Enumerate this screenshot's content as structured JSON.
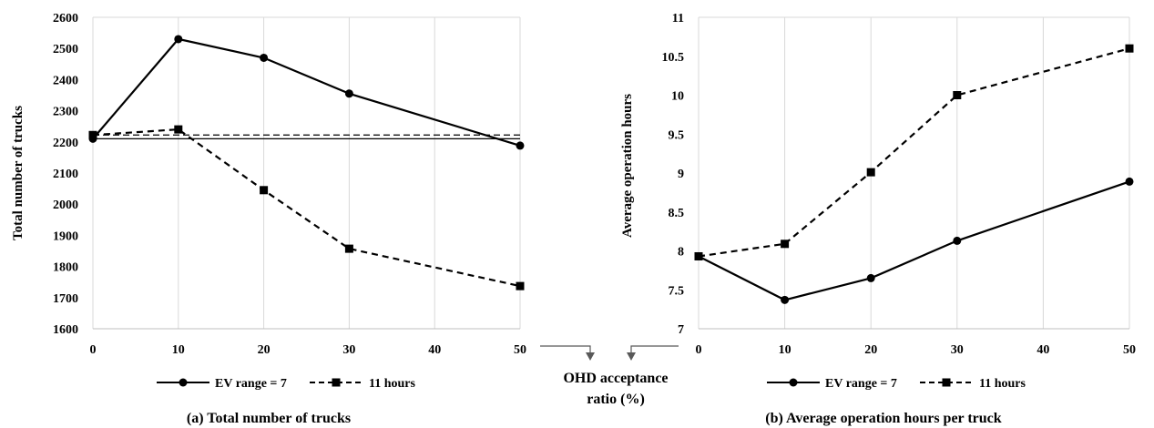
{
  "chart_data": [
    {
      "type": "line",
      "caption": "(a) Total number of trucks",
      "xlabel": "",
      "ylabel": "Total number of trucks",
      "x": [
        0,
        10,
        20,
        30,
        50
      ],
      "x_ticks": [
        0,
        10,
        20,
        30,
        40,
        50
      ],
      "xlim": [
        0,
        50
      ],
      "ylim": [
        1600,
        2600
      ],
      "y_ticks": [
        1600,
        1700,
        1800,
        1900,
        2000,
        2100,
        2200,
        2300,
        2400,
        2500,
        2600
      ],
      "grid": "vertical",
      "legend_position": "bottom",
      "series": [
        {
          "name": "EV range = 7",
          "values": [
            2210,
            2530,
            2470,
            2355,
            2188
          ],
          "style": "solid",
          "marker": "circle"
        },
        {
          "name": "11 hours",
          "values": [
            2222,
            2240,
            2045,
            1857,
            1737
          ],
          "style": "dashed",
          "marker": "square"
        }
      ],
      "reference_lines": [
        {
          "value": 2210,
          "style": "solid"
        },
        {
          "value": 2222,
          "style": "dashed"
        }
      ]
    },
    {
      "type": "line",
      "caption": "(b) Average operation hours per truck",
      "xlabel": "",
      "ylabel": "Average operation hours",
      "x": [
        0,
        10,
        20,
        30,
        50
      ],
      "x_ticks": [
        0,
        10,
        20,
        30,
        40,
        50
      ],
      "xlim": [
        0,
        50
      ],
      "ylim": [
        7,
        11
      ],
      "y_ticks": [
        7,
        7.5,
        8,
        8.5,
        9,
        9.5,
        10,
        10.5,
        11
      ],
      "grid": "vertical",
      "legend_position": "bottom",
      "series": [
        {
          "name": "EV range = 7",
          "values": [
            7.93,
            7.37,
            7.65,
            8.13,
            8.89
          ],
          "style": "solid",
          "marker": "circle"
        },
        {
          "name": "11 hours",
          "values": [
            7.93,
            8.09,
            9.01,
            10.0,
            10.6
          ],
          "style": "dashed",
          "marker": "square"
        }
      ]
    }
  ],
  "shared_xlabel": [
    "OHD acceptance",
    "ratio (%)"
  ],
  "colors": {
    "line": "#000000",
    "grid": "#d9d9d9",
    "axis": "#bfbfbf",
    "arrow": "#595959"
  }
}
